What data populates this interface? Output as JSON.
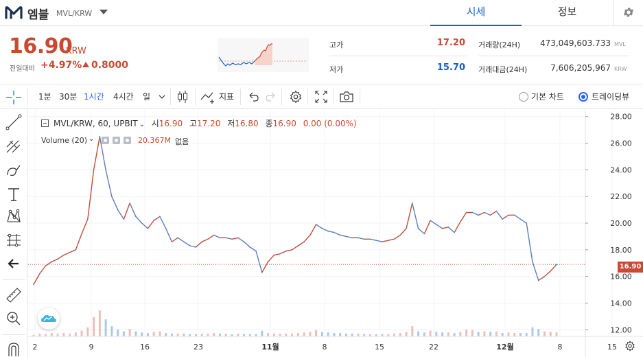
{
  "header": {
    "coin_name": "엠블",
    "pair": "MVL/KRW",
    "tabs": [
      {
        "label": "시세",
        "active": true
      },
      {
        "label": "정보",
        "active": false
      }
    ]
  },
  "summary": {
    "price": "16.90",
    "unit": "KRW",
    "prev_label": "전일대비",
    "change_rate": "+4.97%",
    "change_amount": "0.8000",
    "high_label": "고가",
    "high": "17.20",
    "low_label": "저가",
    "low": "15.70",
    "volume_label": "거래량(24H)",
    "volume": "473,049,603.733",
    "volume_unit": "MVL",
    "amount_label": "거래대금(24H)",
    "amount": "7,606,205,967",
    "amount_unit": "KRW"
  },
  "toolbar": {
    "intervals": [
      "1분",
      "30분",
      "1시간",
      "4시간",
      "일"
    ],
    "active_interval": "1시간",
    "indicator_label": "지표",
    "basic_chart_label": "기본 차트",
    "tradingview_label": "트레이딩뷰"
  },
  "legend": {
    "symbol": "MVL/KRW, 60, UPBIT",
    "o_label": "시",
    "o": "16.90",
    "h_label": "고",
    "h": "17.20",
    "l_label": "저",
    "l": "16.80",
    "c_label": "종",
    "c": "16.90",
    "change": "0.00 (0.00%)",
    "volume_label": "Volume (20)",
    "volume_value": "20.367M",
    "volume_extra": "없음"
  },
  "colors": {
    "up": "#c84a31",
    "down": "#1261c4",
    "accent": "#2962ff",
    "candle_line": "#5b7fb8"
  },
  "chart_data": {
    "type": "line",
    "title": "",
    "ylabel": "",
    "ylim": [
      11.5,
      28.5
    ],
    "y_ticks": [
      "12.00",
      "14.00",
      "16.00",
      "18.00",
      "20.00",
      "22.00",
      "24.00",
      "26.00",
      "28.00"
    ],
    "x_ticks": [
      "2",
      "9",
      "16",
      "23",
      "11월",
      "8",
      "15",
      "22",
      "12월",
      "8",
      "15"
    ],
    "last_price_label": "16.90",
    "last_price": 16.9,
    "series": [
      {
        "values": [
          15.4,
          16.2,
          16.8,
          17.1,
          17.3,
          17.6,
          17.8,
          18.0,
          19.2,
          20.3,
          24.0,
          26.5,
          24.0,
          22.0,
          21.0,
          20.3,
          21.5,
          20.5,
          20.0,
          19.6,
          20.2,
          20.5,
          19.6,
          18.6,
          18.9,
          18.6,
          18.3,
          18.2,
          18.6,
          18.8,
          19.1,
          18.9,
          18.9,
          18.8,
          18.9,
          18.6,
          18.2,
          17.9,
          16.3,
          17.1,
          17.6,
          17.7,
          17.9,
          18.0,
          18.3,
          18.6,
          19.1,
          19.9,
          19.6,
          19.4,
          19.3,
          19.1,
          19.0,
          18.9,
          18.9,
          18.8,
          18.8,
          18.7,
          18.6,
          18.7,
          18.8,
          19.1,
          19.6,
          21.5,
          19.6,
          19.2,
          20.2,
          19.9,
          19.6,
          19.7,
          19.3,
          20.1,
          20.8,
          20.8,
          20.6,
          20.8,
          20.6,
          20.9,
          20.3,
          20.6,
          20.6,
          20.3,
          20.0,
          17.1,
          15.7,
          16.0,
          16.4,
          16.9
        ]
      }
    ],
    "volume": [
      0.3,
      0.5,
      0.4,
      0.6,
      0.5,
      0.6,
      0.5,
      0.7,
      1.0,
      1.6,
      3.4,
      4.6,
      3.0,
      1.8,
      1.2,
      0.9,
      1.3,
      0.9,
      0.7,
      0.6,
      0.8,
      0.9,
      0.6,
      0.5,
      0.5,
      0.5,
      0.4,
      0.4,
      0.5,
      0.5,
      0.6,
      0.5,
      0.5,
      0.4,
      0.5,
      0.4,
      0.4,
      0.4,
      1.0,
      0.6,
      0.5,
      0.5,
      0.5,
      0.5,
      0.6,
      0.7,
      0.8,
      1.1,
      0.8,
      0.7,
      0.6,
      0.6,
      0.5,
      0.5,
      0.5,
      0.4,
      0.4,
      0.4,
      0.4,
      0.4,
      0.5,
      0.6,
      0.8,
      1.8,
      0.9,
      0.7,
      1.0,
      0.8,
      0.7,
      0.7,
      0.6,
      0.8,
      1.2,
      1.1,
      0.8,
      0.9,
      0.8,
      0.9,
      0.6,
      0.7,
      0.6,
      0.6,
      0.6,
      1.6,
      1.3,
      0.9,
      0.8,
      0.7
    ]
  }
}
